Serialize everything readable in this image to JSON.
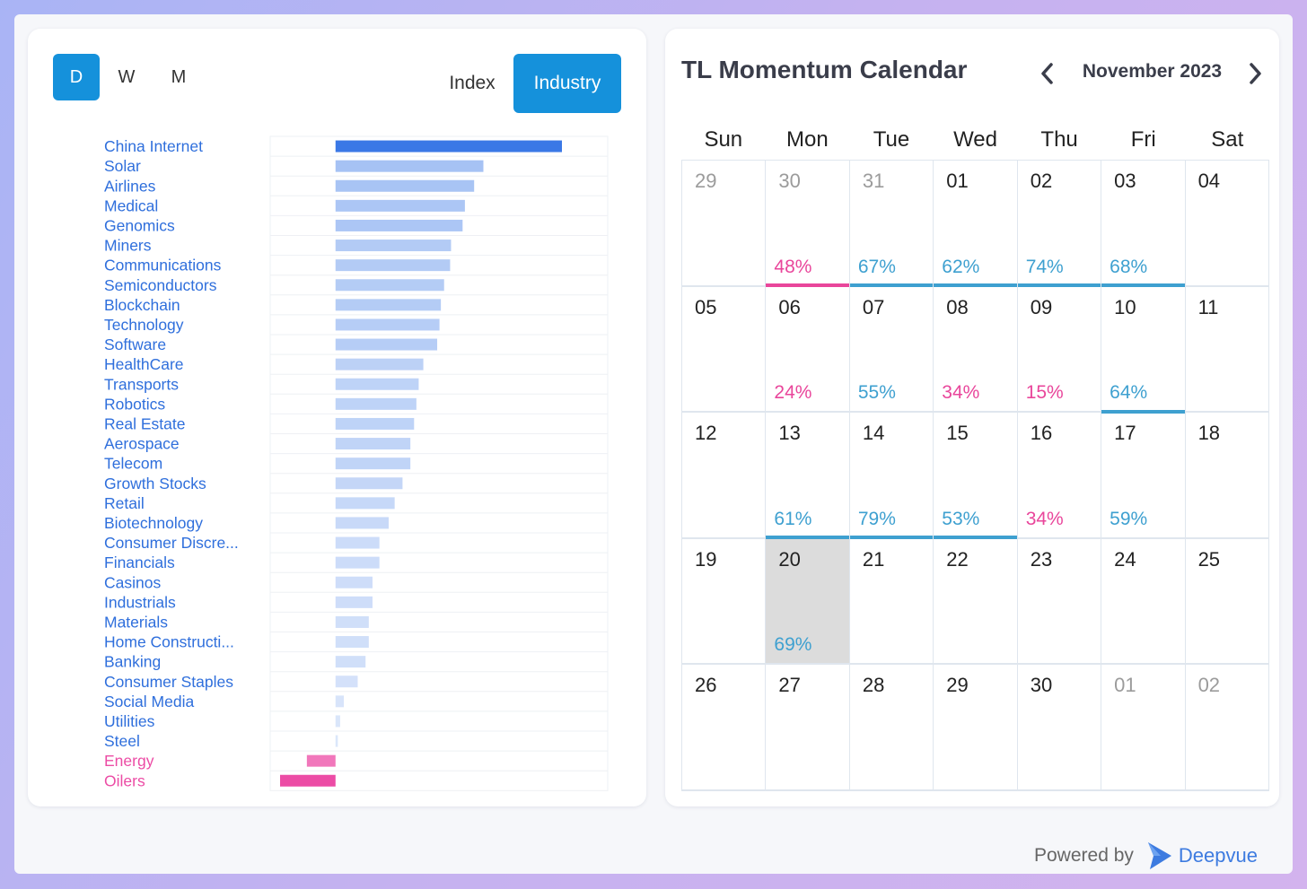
{
  "periods": [
    "D",
    "W",
    "M"
  ],
  "active_period": "D",
  "types": [
    "Index",
    "Industry"
  ],
  "active_type": "Industry",
  "chart_data": {
    "type": "bar",
    "orientation": "horizontal",
    "categories": [
      "China Internet",
      "Solar",
      "Airlines",
      "Medical",
      "Genomics",
      "Miners",
      "Communications",
      "Semiconductors",
      "Blockchain",
      "Technology",
      "Software",
      "HealthCare",
      "Transports",
      "Robotics",
      "Real Estate",
      "Aerospace",
      "Telecom",
      "Growth Stocks",
      "Retail",
      "Biotechnology",
      "Consumer Discre...",
      "Financials",
      "Casinos",
      "Industrials",
      "Materials",
      "Home Constructi...",
      "Banking",
      "Consumer Staples",
      "Social Media",
      "Utilities",
      "Steel",
      "Energy",
      "Oilers"
    ],
    "values": [
      4.9,
      3.2,
      3.0,
      2.8,
      2.75,
      2.5,
      2.48,
      2.35,
      2.28,
      2.25,
      2.2,
      1.9,
      1.8,
      1.75,
      1.7,
      1.62,
      1.62,
      1.45,
      1.28,
      1.15,
      0.95,
      0.95,
      0.8,
      0.8,
      0.72,
      0.72,
      0.65,
      0.48,
      0.18,
      0.1,
      0.05,
      -0.62,
      -1.2
    ],
    "xlim": [
      -1.2,
      4.9
    ],
    "grid": true,
    "colors": {
      "positive": "#3a78e6",
      "negative": "#ec4ca5",
      "positive_label": "#2f6fdc",
      "negative_label": "#ec4ca5"
    }
  },
  "calendar": {
    "title": "TL Momentum Calendar",
    "month_label": "November 2023",
    "weekdays": [
      "Sun",
      "Mon",
      "Tue",
      "Wed",
      "Thu",
      "Fri",
      "Sat"
    ],
    "cells": [
      {
        "day": "29",
        "muted": true
      },
      {
        "day": "30",
        "muted": true,
        "pct": "48%",
        "dir": "neg",
        "line": "neg"
      },
      {
        "day": "31",
        "muted": true,
        "pct": "67%",
        "dir": "pos",
        "line": "pos"
      },
      {
        "day": "01",
        "pct": "62%",
        "dir": "pos",
        "line": "pos"
      },
      {
        "day": "02",
        "pct": "74%",
        "dir": "pos",
        "line": "pos"
      },
      {
        "day": "03",
        "pct": "68%",
        "dir": "pos",
        "line": "pos"
      },
      {
        "day": "04"
      },
      {
        "day": "05"
      },
      {
        "day": "06",
        "pct": "24%",
        "dir": "neg"
      },
      {
        "day": "07",
        "pct": "55%",
        "dir": "pos"
      },
      {
        "day": "08",
        "pct": "34%",
        "dir": "neg"
      },
      {
        "day": "09",
        "pct": "15%",
        "dir": "neg"
      },
      {
        "day": "10",
        "pct": "64%",
        "dir": "pos",
        "line": "pos"
      },
      {
        "day": "11"
      },
      {
        "day": "12"
      },
      {
        "day": "13",
        "pct": "61%",
        "dir": "pos",
        "line": "pos"
      },
      {
        "day": "14",
        "pct": "79%",
        "dir": "pos",
        "line": "pos"
      },
      {
        "day": "15",
        "pct": "53%",
        "dir": "pos",
        "line": "pos"
      },
      {
        "day": "16",
        "pct": "34%",
        "dir": "neg"
      },
      {
        "day": "17",
        "pct": "59%",
        "dir": "pos"
      },
      {
        "day": "18"
      },
      {
        "day": "19"
      },
      {
        "day": "20",
        "pct": "69%",
        "dir": "pos",
        "today": true
      },
      {
        "day": "21"
      },
      {
        "day": "22"
      },
      {
        "day": "23"
      },
      {
        "day": "24"
      },
      {
        "day": "25"
      },
      {
        "day": "26"
      },
      {
        "day": "27"
      },
      {
        "day": "28"
      },
      {
        "day": "29"
      },
      {
        "day": "30"
      },
      {
        "day": "01",
        "muted": true
      },
      {
        "day": "02",
        "muted": true
      }
    ]
  },
  "footer": {
    "powered_by": "Powered by",
    "brand": "Deepvue"
  }
}
